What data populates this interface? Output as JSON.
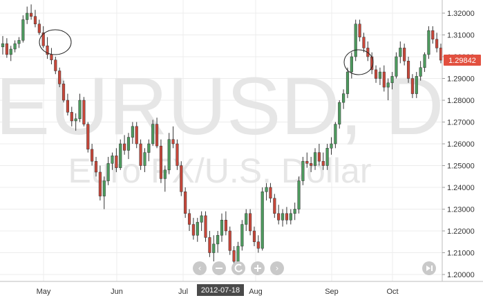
{
  "chart_data": {
    "type": "candlestick",
    "title": "EURUSD, D",
    "subtitle": "Euro FX/U.S. Dollar",
    "symbol": "EURUSD",
    "interval": "D",
    "description": "Euro FX/U.S. Dollar",
    "last_price": "1.29842",
    "y_ticks": [
      "1.32000",
      "1.31000",
      "1.30000",
      "1.29000",
      "1.28000",
      "1.27000",
      "1.26000",
      "1.25000",
      "1.24000",
      "1.23000",
      "1.22000",
      "1.21000",
      "1.20000"
    ],
    "x_ticks": [
      "May",
      "Jun",
      "Jul",
      "Aug",
      "Sep",
      "Oct"
    ],
    "cursor_date": "2012-07-18",
    "ylim": [
      1.2,
      1.32
    ],
    "grid": true,
    "colors": {
      "up": "#4d9a5e",
      "down": "#c8473a",
      "price_tag": "#e2503f",
      "cursor_tag": "#4a4a4a",
      "nav_button": "#c9c9c9"
    },
    "annotations": [
      {
        "type": "ellipse",
        "date": "early May"
      },
      {
        "type": "ellipse",
        "date": "mid September"
      }
    ],
    "candles": [
      [
        1.3045,
        1.3095,
        1.301,
        1.306
      ],
      [
        1.306,
        1.3085,
        1.2995,
        1.301
      ],
      [
        1.301,
        1.305,
        1.298,
        1.3035
      ],
      [
        1.3035,
        1.3075,
        1.302,
        1.306
      ],
      [
        1.306,
        1.309,
        1.304,
        1.3075
      ],
      [
        1.3075,
        1.319,
        1.3065,
        1.317
      ],
      [
        1.317,
        1.323,
        1.315,
        1.32
      ],
      [
        1.32,
        1.324,
        1.317,
        1.3185
      ],
      [
        1.3185,
        1.3215,
        1.3135,
        1.315
      ],
      [
        1.315,
        1.317,
        1.31,
        1.311
      ],
      [
        1.311,
        1.314,
        1.304,
        1.305
      ],
      [
        1.305,
        1.309,
        1.299,
        1.301
      ],
      [
        1.301,
        1.304,
        1.2965,
        1.2985
      ],
      [
        1.2985,
        1.3,
        1.292,
        1.2935
      ],
      [
        1.2935,
        1.295,
        1.286,
        1.2875
      ],
      [
        1.2875,
        1.289,
        1.279,
        1.28
      ],
      [
        1.28,
        1.283,
        1.273,
        1.2745
      ],
      [
        1.2745,
        1.277,
        1.268,
        1.2705
      ],
      [
        1.2705,
        1.274,
        1.266,
        1.2715
      ],
      [
        1.2715,
        1.283,
        1.27,
        1.28
      ],
      [
        1.28,
        1.2815,
        1.268,
        1.269
      ],
      [
        1.269,
        1.27,
        1.256,
        1.2575
      ],
      [
        1.2575,
        1.26,
        1.25,
        1.252
      ],
      [
        1.252,
        1.254,
        1.245,
        1.247
      ],
      [
        1.247,
        1.25,
        1.234,
        1.236
      ],
      [
        1.236,
        1.245,
        1.23,
        1.243
      ],
      [
        1.243,
        1.254,
        1.241,
        1.251
      ],
      [
        1.251,
        1.256,
        1.248,
        1.2545
      ],
      [
        1.2545,
        1.258,
        1.247,
        1.249
      ],
      [
        1.249,
        1.262,
        1.248,
        1.26
      ],
      [
        1.26,
        1.264,
        1.255,
        1.257
      ],
      [
        1.257,
        1.265,
        1.253,
        1.263
      ],
      [
        1.263,
        1.27,
        1.26,
        1.268
      ],
      [
        1.268,
        1.27,
        1.258,
        1.26
      ],
      [
        1.26,
        1.262,
        1.248,
        1.25
      ],
      [
        1.25,
        1.258,
        1.247,
        1.256
      ],
      [
        1.256,
        1.262,
        1.252,
        1.26
      ],
      [
        1.26,
        1.271,
        1.259,
        1.269
      ],
      [
        1.269,
        1.272,
        1.258,
        1.259
      ],
      [
        1.259,
        1.262,
        1.242,
        1.244
      ],
      [
        1.244,
        1.25,
        1.238,
        1.248
      ],
      [
        1.248,
        1.265,
        1.246,
        1.262
      ],
      [
        1.262,
        1.268,
        1.258,
        1.26
      ],
      [
        1.26,
        1.262,
        1.248,
        1.25
      ],
      [
        1.25,
        1.252,
        1.236,
        1.238
      ],
      [
        1.238,
        1.24,
        1.226,
        1.228
      ],
      [
        1.228,
        1.23,
        1.22,
        1.223
      ],
      [
        1.223,
        1.226,
        1.216,
        1.218
      ],
      [
        1.218,
        1.226,
        1.215,
        1.224
      ],
      [
        1.224,
        1.229,
        1.22,
        1.227
      ],
      [
        1.227,
        1.229,
        1.215,
        1.217
      ],
      [
        1.217,
        1.22,
        1.208,
        1.21
      ],
      [
        1.21,
        1.218,
        1.206,
        1.214
      ],
      [
        1.214,
        1.22,
        1.21,
        1.218
      ],
      [
        1.218,
        1.228,
        1.215,
        1.225
      ],
      [
        1.225,
        1.229,
        1.218,
        1.22
      ],
      [
        1.22,
        1.222,
        1.209,
        1.211
      ],
      [
        1.211,
        1.213,
        1.203,
        1.206
      ],
      [
        1.206,
        1.215,
        1.204,
        1.213
      ],
      [
        1.213,
        1.225,
        1.211,
        1.223
      ],
      [
        1.223,
        1.23,
        1.22,
        1.228
      ],
      [
        1.228,
        1.23,
        1.218,
        1.22
      ],
      [
        1.22,
        1.222,
        1.213,
        1.215
      ],
      [
        1.215,
        1.218,
        1.21,
        1.212
      ],
      [
        1.212,
        1.24,
        1.211,
        1.238
      ],
      [
        1.238,
        1.242,
        1.234,
        1.24
      ],
      [
        1.24,
        1.242,
        1.233,
        1.235
      ],
      [
        1.235,
        1.237,
        1.226,
        1.228
      ],
      [
        1.228,
        1.232,
        1.223,
        1.225
      ],
      [
        1.225,
        1.23,
        1.222,
        1.228
      ],
      [
        1.228,
        1.231,
        1.223,
        1.225
      ],
      [
        1.225,
        1.23,
        1.223,
        1.228
      ],
      [
        1.228,
        1.233,
        1.225,
        1.23
      ],
      [
        1.23,
        1.245,
        1.228,
        1.243
      ],
      [
        1.243,
        1.254,
        1.241,
        1.252
      ],
      [
        1.252,
        1.256,
        1.249,
        1.251
      ],
      [
        1.251,
        1.254,
        1.247,
        1.25
      ],
      [
        1.25,
        1.258,
        1.248,
        1.256
      ],
      [
        1.256,
        1.26,
        1.25,
        1.252
      ],
      [
        1.252,
        1.256,
        1.248,
        1.25
      ],
      [
        1.25,
        1.26,
        1.248,
        1.258
      ],
      [
        1.258,
        1.263,
        1.255,
        1.26
      ],
      [
        1.26,
        1.27,
        1.258,
        1.269
      ],
      [
        1.269,
        1.28,
        1.267,
        1.279
      ],
      [
        1.279,
        1.285,
        1.276,
        1.283
      ],
      [
        1.283,
        1.295,
        1.281,
        1.293
      ],
      [
        1.293,
        1.302,
        1.29,
        1.3
      ],
      [
        1.3,
        1.317,
        1.298,
        1.315
      ],
      [
        1.315,
        1.317,
        1.307,
        1.309
      ],
      [
        1.309,
        1.311,
        1.302,
        1.304
      ],
      [
        1.304,
        1.307,
        1.298,
        1.3
      ],
      [
        1.3,
        1.302,
        1.292,
        1.294
      ],
      [
        1.294,
        1.296,
        1.288,
        1.29
      ],
      [
        1.29,
        1.295,
        1.287,
        1.293
      ],
      [
        1.293,
        1.296,
        1.284,
        1.286
      ],
      [
        1.286,
        1.29,
        1.28,
        1.288
      ],
      [
        1.288,
        1.293,
        1.285,
        1.291
      ],
      [
        1.291,
        1.302,
        1.29,
        1.3
      ],
      [
        1.3,
        1.307,
        1.297,
        1.304
      ],
      [
        1.304,
        1.306,
        1.296,
        1.298
      ],
      [
        1.298,
        1.3,
        1.288,
        1.29
      ],
      [
        1.29,
        1.292,
        1.281,
        1.283
      ],
      [
        1.283,
        1.293,
        1.281,
        1.291
      ],
      [
        1.291,
        1.298,
        1.289,
        1.295
      ],
      [
        1.295,
        1.302,
        1.293,
        1.301
      ],
      [
        1.301,
        1.314,
        1.299,
        1.312
      ],
      [
        1.312,
        1.314,
        1.306,
        1.308
      ],
      [
        1.308,
        1.311,
        1.302,
        1.304
      ],
      [
        1.304,
        1.306,
        1.297,
        1.2984
      ]
    ]
  }
}
